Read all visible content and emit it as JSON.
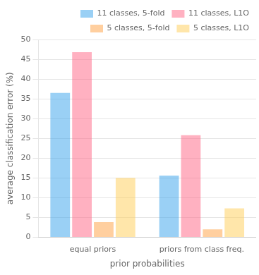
{
  "chart_data": {
    "type": "bar",
    "categories": [
      "equal priors",
      "priors from class freq."
    ],
    "series": [
      {
        "name": "11 classes, 5-fold",
        "values": [
          36.5,
          15.6
        ]
      },
      {
        "name": "11 classes, L1O",
        "values": [
          46.8,
          25.8
        ]
      },
      {
        "name": "5 classes, 5-fold",
        "values": [
          3.8,
          2.0
        ]
      },
      {
        "name": "5 classes, L1O",
        "values": [
          15.0,
          7.3
        ]
      }
    ],
    "x_label": "prior probabilities",
    "y_label": "average classification error (%)",
    "ylim": [
      0,
      50
    ],
    "yticks": [
      0,
      5,
      10,
      15,
      20,
      25,
      30,
      35,
      40,
      45,
      50
    ],
    "grid": true,
    "legend": "upper right"
  }
}
